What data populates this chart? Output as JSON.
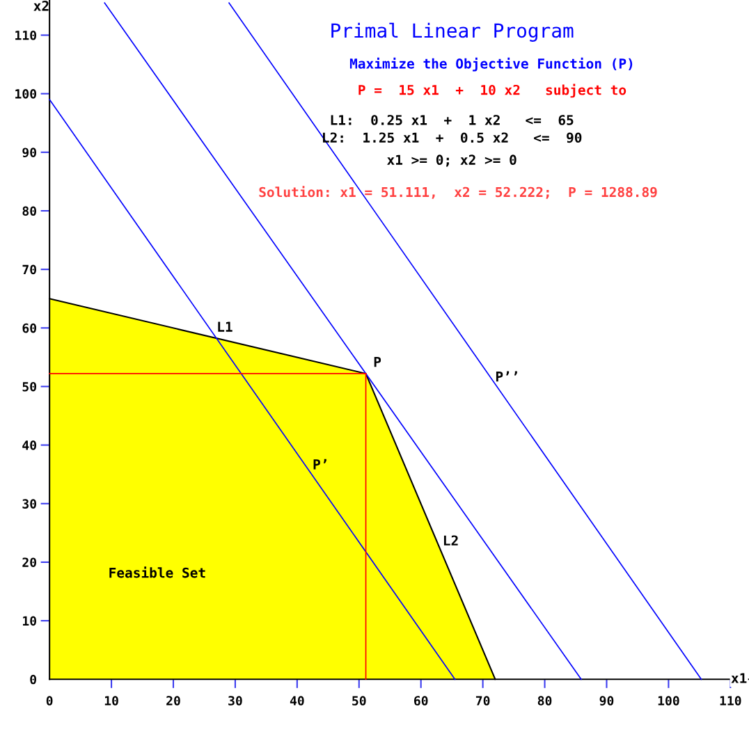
{
  "chart_data": {
    "type": "line",
    "title": "Primal Linear Program",
    "subtitle": "Maximize the Objective Function (P)",
    "xlabel": "x1",
    "ylabel": "x2",
    "xlim": [
      -8,
      113
    ],
    "ylim": [
      -9,
      116
    ],
    "xticks": [
      0,
      10,
      20,
      30,
      40,
      50,
      60,
      70,
      80,
      90,
      100,
      110
    ],
    "yticks": [
      0,
      10,
      20,
      30,
      40,
      50,
      60,
      70,
      80,
      90,
      100,
      110
    ],
    "grid": false,
    "legend": false,
    "marker": "none",
    "line_style": "solid",
    "series": [
      {
        "type": "area",
        "color": "#ffff00",
        "x": [
          0,
          51.1,
          72
        ],
        "values": [
          65,
          52.2,
          0
        ]
      },
      {
        "type": "line",
        "color": "#0000ff",
        "x": [
          0,
          65.5
        ],
        "values": [
          99,
          0
        ]
      },
      {
        "type": "line",
        "color": "#0000ff",
        "x": [
          8.9,
          85.9
        ],
        "values": [
          115.5,
          0
        ]
      },
      {
        "type": "line",
        "color": "#0000ff",
        "x": [
          29,
          105.3
        ],
        "values": [
          115.5,
          0
        ]
      },
      {
        "type": "line",
        "color": "#ff0000",
        "x": [
          0,
          51.1
        ],
        "values": [
          52.2,
          52.2
        ]
      },
      {
        "type": "line",
        "color": "#ff0000",
        "x": [
          51.1,
          51.1
        ],
        "values": [
          0,
          52.2
        ]
      }
    ],
    "annotations": [
      "P =  15 x1  +  10 x2   subject to",
      "L1:  0.25 x1  +  1 x2   <=  65",
      "L2:  1.25 x1  +  0.5 x2   <=  90",
      "x1 >= 0; x2 >= 0",
      "Solution: x1 = 51.111,  x2 = 52.222;  P = 1288.89",
      "L1",
      "P",
      "P’’",
      "P’",
      "L2",
      "Feasible Set"
    ]
  }
}
